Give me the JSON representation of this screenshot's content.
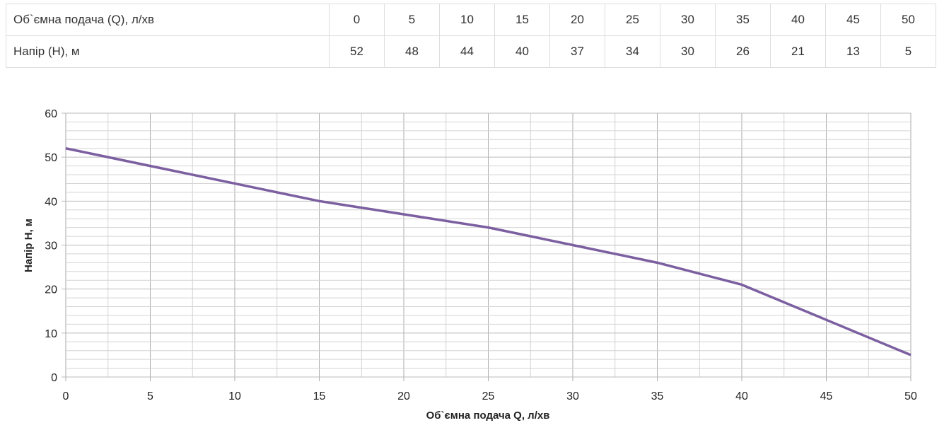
{
  "table": {
    "rows": [
      {
        "label": "Об`ємна подача (Q), л/хв",
        "values": [
          "0",
          "5",
          "10",
          "15",
          "20",
          "25",
          "30",
          "35",
          "40",
          "45",
          "50"
        ]
      },
      {
        "label": "Напір (H), м",
        "values": [
          "52",
          "48",
          "44",
          "40",
          "37",
          "34",
          "30",
          "26",
          "21",
          "13",
          "5"
        ]
      }
    ]
  },
  "chart_data": {
    "type": "line",
    "title": "",
    "xlabel": "Об`ємна подача Q, л/хв",
    "ylabel": "Напір H, м",
    "xlim": [
      0,
      50
    ],
    "ylim": [
      0,
      60
    ],
    "xticks": [
      0,
      5,
      10,
      15,
      20,
      25,
      30,
      35,
      40,
      45,
      50
    ],
    "yticks": [
      0,
      10,
      20,
      30,
      40,
      50,
      60
    ],
    "grid": true,
    "line_color": "#7b5fa0",
    "x": [
      0,
      5,
      10,
      15,
      20,
      25,
      30,
      35,
      40,
      45,
      50
    ],
    "y": [
      52,
      48,
      44,
      40,
      37,
      34,
      30,
      26,
      21,
      13,
      5
    ]
  }
}
